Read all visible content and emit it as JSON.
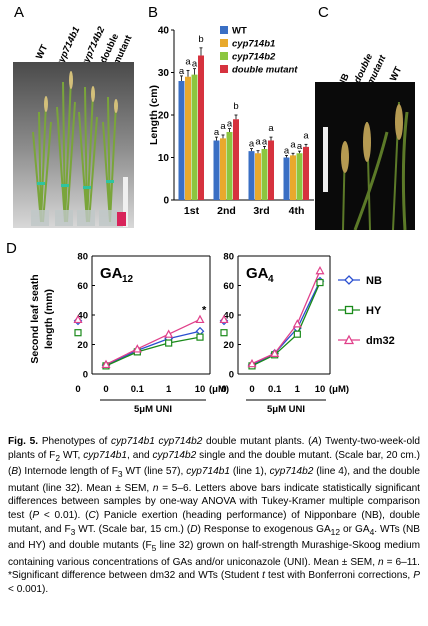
{
  "panel_a": {
    "letter": "A",
    "genotype_labels": [
      "WT",
      "cyp714b1",
      "cyp714b2",
      "double",
      "mutant"
    ]
  },
  "panel_b": {
    "letter": "B",
    "chart_data": {
      "type": "bar",
      "ylabel": "Length (cm)",
      "ylim": [
        0,
        40
      ],
      "yticks": [
        "0",
        "10",
        "20",
        "30",
        "40"
      ],
      "categories": [
        "1st",
        "2nd",
        "3rd",
        "4th"
      ],
      "legend_position": "top-right",
      "series": [
        {
          "name": "WT",
          "color": "#3a6fc4",
          "values": [
            28,
            14,
            11.5,
            10
          ],
          "errors": [
            1.2,
            0.8,
            0.6,
            0.5
          ],
          "letters": [
            "a",
            "a",
            "a",
            "a"
          ]
        },
        {
          "name": "cyp714b1",
          "color": "#e8a92c",
          "values": [
            29,
            14.5,
            11,
            10.5
          ],
          "errors": [
            1.5,
            0.8,
            0.6,
            0.5
          ],
          "letters": [
            "a",
            "a",
            "a",
            "a"
          ]
        },
        {
          "name": "cyp714b2",
          "color": "#8cc63f",
          "values": [
            29.5,
            16,
            12,
            11
          ],
          "errors": [
            1.4,
            0.8,
            0.6,
            0.5
          ],
          "letters": [
            "a",
            "a",
            "a",
            "a"
          ]
        },
        {
          "name": "double mutant",
          "color": "#d6323e",
          "values": [
            34,
            19,
            14,
            12.5
          ],
          "errors": [
            1.8,
            1,
            0.8,
            0.6
          ],
          "letters": [
            "b",
            "b",
            "a",
            "a"
          ]
        }
      ]
    }
  },
  "panel_c": {
    "letter": "C",
    "labels": [
      "NB",
      "double",
      "mutant",
      "WT"
    ]
  },
  "panel_d": {
    "letter": "D",
    "ylabel_line1": "Second  leaf seath",
    "ylabel_line2": "length (mm)",
    "treatment_label": "5μM UNI",
    "x_unit": "(μM)",
    "significance_mark": "*",
    "chart_data": [
      {
        "type": "line",
        "title": "GA",
        "title_sub": "12",
        "ylim": [
          0,
          80
        ],
        "yticks": [
          "0",
          "20",
          "40",
          "60",
          "80"
        ],
        "categories": [
          "0",
          "0",
          "0.1",
          "1",
          "10"
        ],
        "series": [
          {
            "name": "NB",
            "color": "#2a4fd0",
            "marker": "diamond",
            "values": [
              36,
              6,
              16,
              24,
              29
            ]
          },
          {
            "name": "HY",
            "color": "#1a8a1a",
            "marker": "square",
            "values": [
              28,
              5.5,
              15,
              21,
              25
            ]
          },
          {
            "name": "dm32",
            "color": "#e0408a",
            "marker": "triangle",
            "values": [
              37,
              6.5,
              17,
              27,
              37
            ]
          }
        ]
      },
      {
        "type": "line",
        "title": "GA",
        "title_sub": "4",
        "ylim": [
          0,
          80
        ],
        "yticks": [
          "0",
          "20",
          "40",
          "60",
          "80"
        ],
        "categories": [
          "0",
          "0",
          "0.1",
          "1",
          "10"
        ],
        "legend_position": "right",
        "series": [
          {
            "name": "NB",
            "color": "#2a4fd0",
            "marker": "diamond",
            "values": [
              36,
              6,
              14,
              31,
              63
            ]
          },
          {
            "name": "HY",
            "color": "#1a8a1a",
            "marker": "square",
            "values": [
              28,
              5.5,
              13,
              27,
              62
            ]
          },
          {
            "name": "dm32",
            "color": "#e0408a",
            "marker": "triangle",
            "values": [
              37,
              7,
              14,
              34,
              70
            ]
          }
        ]
      }
    ]
  },
  "caption": {
    "fig_label": "Fig. 5.",
    "text_html": "Phenotypes of <i>cyp714b1 cyp714b2</i> double mutant plants. (<i>A</i>) Twenty-two-week-old plants of F<sub>2</sub> WT, <i>cyp714b1</i>, and <i>cyp714b2</i> single and the double mutant. (Scale bar, 20 cm.) (<i>B</i>) Internode length of F<sub>3</sub> WT (line 57), <i>cyp714b1</i> (line 1), <i>cyp714b2</i> (line 4), and the double mutant (line 32). Mean ± SEM, <i>n</i> = 5–6. Letters above bars indicate statistically significant differences between samples by one-way ANOVA with Tukey-Kramer multiple comparison test (<i>P</i> &lt; 0.01). (<i>C</i>) Panicle exertion (heading performance) of Nipponbare (NB), double mutant, and F<sub>3</sub> WT. (Scale bar, 15 cm.) (<i>D</i>) Response to exogenous GA<sub>12</sub> or GA<sub>4</sub>. WTs (NB and HY) and double mutants (F<sub>5</sub> line 32) grown on half-strength Murashige-Skoog medium containing various concentrations of GAs and/or uniconazole (UNI). Mean ± SEM, <i>n</i> = 6–11. *Significant difference between dm32 and WTs (Student <i>t</i> test with Bonferroni corrections, <i>P</i> &lt; 0.001)."
  }
}
